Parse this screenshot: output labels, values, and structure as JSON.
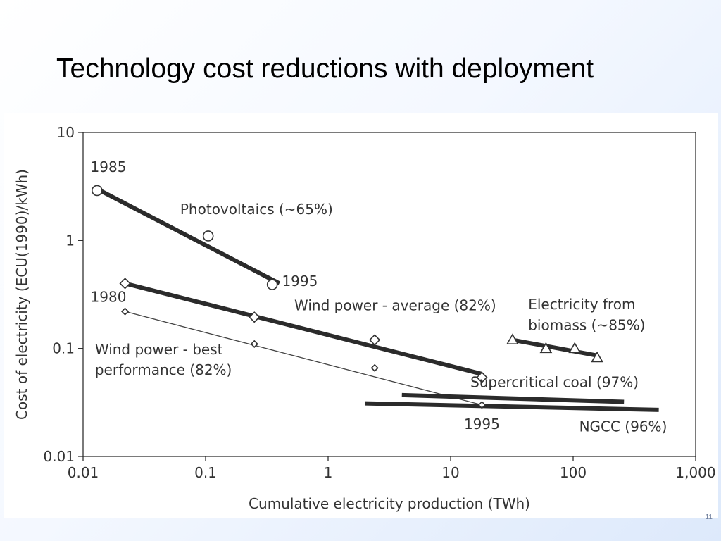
{
  "slide": {
    "title": "Technology cost reductions with deployment",
    "page_number": "11"
  },
  "chart_data": {
    "type": "line",
    "title": "",
    "xlabel": "Cumulative electricity production (TWh)",
    "ylabel": "Cost of electricity (ECU(1990)/kWh)",
    "xscale": "log",
    "yscale": "log",
    "xlim": [
      0.01,
      1000
    ],
    "ylim": [
      0.01,
      10
    ],
    "xticks": [
      {
        "v": 0.01,
        "label": "0.01"
      },
      {
        "v": 0.1,
        "label": "0.1"
      },
      {
        "v": 1,
        "label": "1"
      },
      {
        "v": 10,
        "label": "10"
      },
      {
        "v": 100,
        "label": "100"
      },
      {
        "v": 1000,
        "label": "1,000"
      }
    ],
    "yticks": [
      {
        "v": 0.01,
        "label": "0.01"
      },
      {
        "v": 0.1,
        "label": "0.1"
      },
      {
        "v": 1,
        "label": "1"
      },
      {
        "v": 10,
        "label": "10"
      }
    ],
    "grid": false,
    "series": [
      {
        "name": "Photovoltaics (~65%)",
        "marker": "circle",
        "line_weight": "heavy",
        "points": [
          [
            0.013,
            2.9
          ],
          [
            0.105,
            1.1
          ],
          [
            0.35,
            0.39
          ]
        ],
        "fit": [
          [
            0.013,
            3.0
          ],
          [
            0.4,
            0.4
          ]
        ]
      },
      {
        "name": "Wind power - average (82%)",
        "marker": "diamond",
        "line_weight": "heavy",
        "points": [
          [
            0.022,
            0.4
          ],
          [
            0.25,
            0.195
          ],
          [
            2.4,
            0.12
          ],
          [
            18,
            0.054
          ]
        ],
        "fit": [
          [
            0.022,
            0.4
          ],
          [
            18,
            0.058
          ]
        ]
      },
      {
        "name": "Wind power - best performance (82%)",
        "marker": "diamond-small",
        "line_weight": "thin",
        "points": [
          [
            0.022,
            0.22
          ],
          [
            0.25,
            0.11
          ],
          [
            2.4,
            0.066
          ],
          [
            18,
            0.03
          ]
        ],
        "fit": [
          [
            0.022,
            0.22
          ],
          [
            18,
            0.03
          ]
        ]
      },
      {
        "name": "Electricity from biomass (~85%)",
        "marker": "triangle",
        "line_weight": "heavy",
        "points": [
          [
            32,
            0.12
          ],
          [
            60,
            0.1
          ],
          [
            103,
            0.1
          ],
          [
            157,
            0.082
          ]
        ],
        "fit": [
          [
            32,
            0.12
          ],
          [
            157,
            0.086
          ]
        ]
      },
      {
        "name": "Supercritical coal (97%)",
        "marker": "none",
        "line_weight": "heavy",
        "points": [],
        "fit": [
          [
            4,
            0.037
          ],
          [
            260,
            0.032
          ]
        ]
      },
      {
        "name": "NGCC (96%)",
        "marker": "none",
        "line_weight": "heavy",
        "points": [],
        "fit": [
          [
            2,
            0.031
          ],
          [
            500,
            0.027
          ]
        ]
      }
    ],
    "annotations": [
      {
        "text": "1985",
        "x": 0.0115,
        "y": 4.3,
        "anchor": "start"
      },
      {
        "text": "Photovoltaics (~65%)",
        "x": 0.062,
        "y": 1.75,
        "anchor": "start"
      },
      {
        "text": "1995",
        "x": 0.42,
        "y": 0.38,
        "anchor": "start"
      },
      {
        "text": "1980",
        "x": 0.0115,
        "y": 0.27,
        "anchor": "start"
      },
      {
        "text": "Wind power - average (82%)",
        "x": 0.53,
        "y": 0.225,
        "anchor": "start"
      },
      {
        "text": "Wind power - best",
        "x": 0.0125,
        "y": 0.088,
        "anchor": "start"
      },
      {
        "text": "performance (82%)",
        "x": 0.0125,
        "y": 0.057,
        "anchor": "start"
      },
      {
        "text": "Electricity from",
        "x": 43,
        "y": 0.23,
        "anchor": "start"
      },
      {
        "text": "biomass (~85%)",
        "x": 43,
        "y": 0.148,
        "anchor": "start"
      },
      {
        "text": "Supercritical coal (97%)",
        "x": 14.5,
        "y": 0.044,
        "anchor": "start"
      },
      {
        "text": "1995",
        "x": 18,
        "y": 0.018,
        "anchor": "middle"
      },
      {
        "text": "NGCC (96%)",
        "x": 112,
        "y": 0.017,
        "anchor": "start"
      }
    ]
  }
}
